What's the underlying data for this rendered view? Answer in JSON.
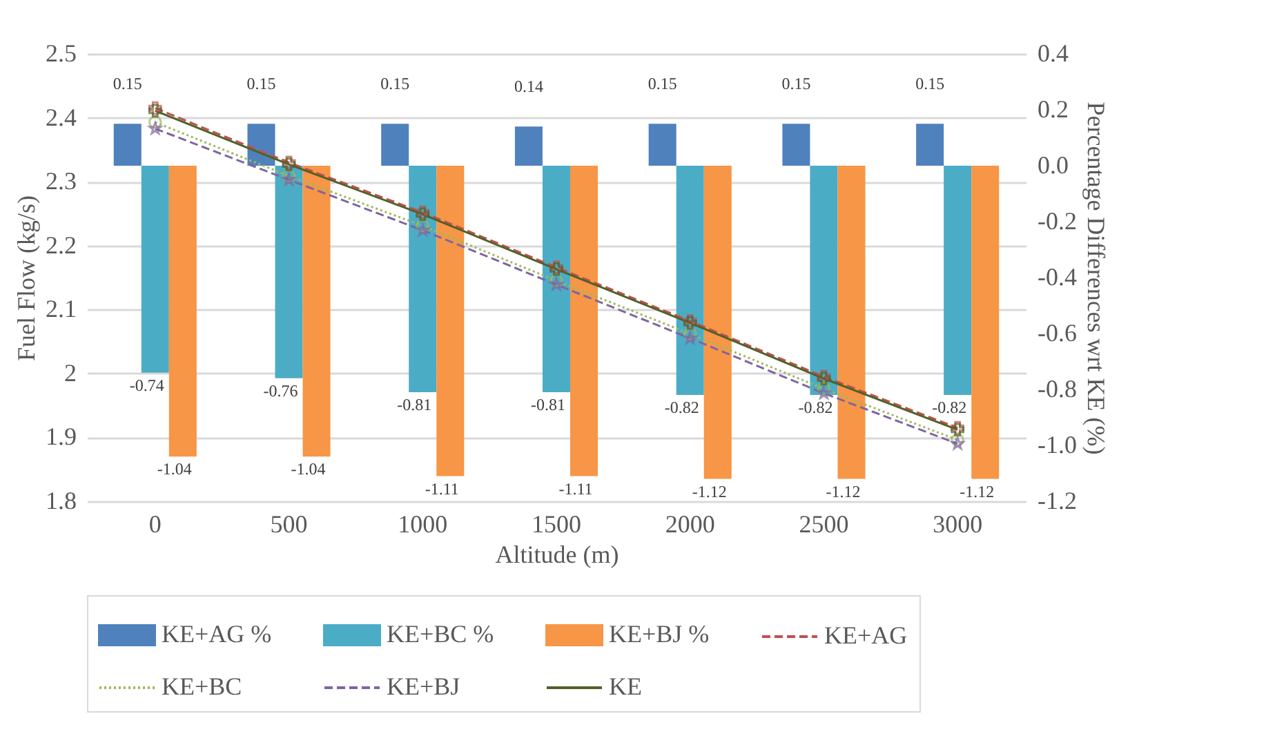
{
  "chart_data": {
    "type": "bar",
    "xlabel": "Altitude (m)",
    "ylabel": "Fuel Flow (kg/s)",
    "y2label": "Percentage Differences wrt KE (%)",
    "categories": [
      "0",
      "500",
      "1000",
      "1500",
      "2000",
      "2500",
      "3000"
    ],
    "ylim": [
      1.8,
      2.5
    ],
    "yticks": [
      1.8,
      1.9,
      2,
      2.1,
      2.2,
      2.3,
      2.4,
      2.5
    ],
    "y2lim": [
      -1.2,
      0.4
    ],
    "y2ticks": [
      {
        "value": -1.2,
        "label": "-1.2"
      },
      {
        "value": -1.0,
        "label": "-1.0"
      },
      {
        "value": -0.8,
        "label": "-0.8"
      },
      {
        "value": -0.6,
        "label": "-0.6"
      },
      {
        "value": -0.4,
        "label": "-0.4"
      },
      {
        "value": -0.2,
        "label": "-0.2"
      },
      {
        "value": 0,
        "label": "0.0"
      },
      {
        "value": 0.2,
        "label": "0.2"
      },
      {
        "value": 0.4,
        "label": "0.4"
      }
    ],
    "grid": "y",
    "legend": "bottom",
    "series": [
      {
        "name": "KE+AG %",
        "axis": "y2",
        "color": "#4f81bd",
        "values": [
          0.15,
          0.15,
          0.15,
          0.14,
          0.15,
          0.15,
          0.15
        ],
        "value_labels": [
          "0.15",
          "0.15",
          "0.15",
          "0.14",
          "0.15",
          "0.15",
          "0.15"
        ]
      },
      {
        "name": "KE+BC %",
        "axis": "y2",
        "color": "#4bacc6",
        "values": [
          -0.74,
          -0.76,
          -0.81,
          -0.81,
          -0.82,
          -0.82,
          -0.82
        ],
        "value_labels": [
          "-0.74",
          "-0.76",
          "-0.81",
          "-0.81",
          "-0.82",
          "-0.82",
          "-0.82"
        ]
      },
      {
        "name": "KE+BJ %",
        "axis": "y2",
        "color": "#f79646",
        "values": [
          -1.04,
          -1.04,
          -1.11,
          -1.11,
          -1.12,
          -1.12,
          -1.12
        ],
        "value_labels": [
          "-1.04",
          "-1.04",
          "-1.11",
          "-1.11",
          "-1.12",
          "-1.12",
          "-1.12"
        ]
      },
      {
        "name": "KE+AG",
        "type": "line",
        "color": "#c0504d",
        "line_style": "dashed",
        "marker": "cross",
        "values": [
          2.415,
          2.33,
          2.252,
          2.166,
          2.082,
          1.995,
          1.915
        ]
      },
      {
        "name": "KE+BC",
        "type": "line",
        "color": "#9bbb59",
        "line_style": "dotted",
        "marker": "circle",
        "values": [
          2.393,
          2.309,
          2.231,
          2.145,
          2.062,
          1.976,
          1.896
        ]
      },
      {
        "name": "KE+BJ",
        "type": "line",
        "color": "#8064a2",
        "line_style": "dashed",
        "marker": "star",
        "values": [
          2.383,
          2.303,
          2.224,
          2.139,
          2.055,
          1.969,
          1.89
        ]
      },
      {
        "name": "KE",
        "type": "line",
        "color": "#4f6228",
        "line_style": "solid",
        "marker": "cross",
        "values": [
          2.411,
          2.327,
          2.249,
          2.163,
          2.079,
          1.992,
          1.912
        ]
      }
    ]
  }
}
